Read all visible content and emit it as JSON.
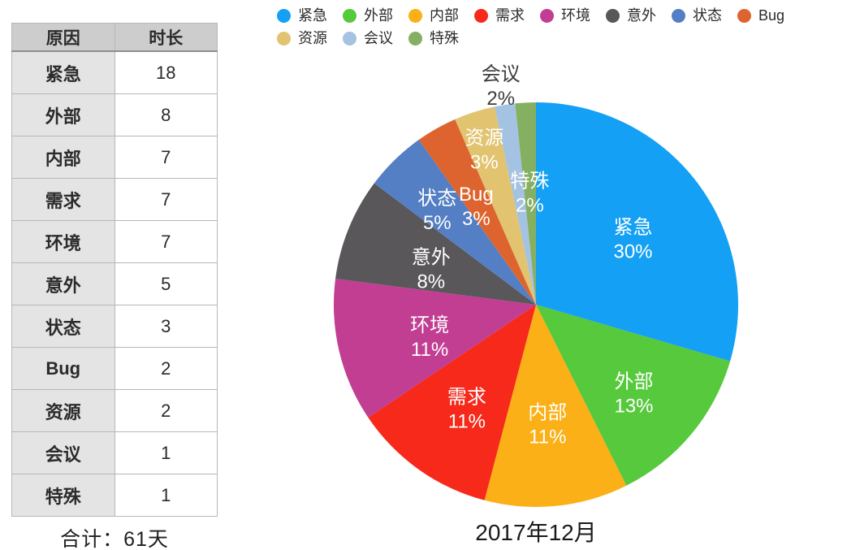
{
  "table": {
    "headers": [
      "原因",
      "时长"
    ],
    "rows": [
      [
        "紧急",
        "18"
      ],
      [
        "外部",
        "8"
      ],
      [
        "内部",
        "7"
      ],
      [
        "需求",
        "7"
      ],
      [
        "环境",
        "7"
      ],
      [
        "意外",
        "5"
      ],
      [
        "状态",
        "3"
      ],
      [
        "Bug",
        "2"
      ],
      [
        "资源",
        "2"
      ],
      [
        "会议",
        "1"
      ],
      [
        "特殊",
        "1"
      ]
    ],
    "total_label": "合计：61天"
  },
  "chart_data": {
    "type": "pie",
    "title": "2017年12月",
    "legend_position": "top",
    "start_angle_deg": 0,
    "clockwise": true,
    "total_days": 61,
    "categories": [
      "紧急",
      "外部",
      "内部",
      "需求",
      "环境",
      "意外",
      "状态",
      "Bug",
      "资源",
      "会议",
      "特殊"
    ],
    "values_days": [
      18,
      8,
      7,
      7,
      7,
      5,
      3,
      2,
      2,
      1,
      1
    ],
    "percent_labels": [
      "30%",
      "13%",
      "11%",
      "11%",
      "11%",
      "8%",
      "5%",
      "3%",
      "3%",
      "2%",
      "2%"
    ],
    "colors": [
      "#14a0f4",
      "#56c93c",
      "#fab016",
      "#f6291a",
      "#c13e92",
      "#59575a",
      "#547fc4",
      "#dd642e",
      "#e2c36f",
      "#a4c2e1",
      "#85af61"
    ],
    "label_radius_factors": [
      0.6,
      0.63,
      0.56,
      0.59,
      0.54,
      0.56,
      0.7,
      0.6,
      0.84,
      1.13,
      0.59
    ],
    "outside_label_index": 9,
    "inside_label_color": "#ffffff",
    "outside_label_color": "#3d3d3d"
  },
  "colors": {
    "background": "#ffffff",
    "table_header_bg": "#cdcdcd",
    "table_label_col_bg": "#e4e4e4",
    "table_border": "#b7b7b7",
    "text": "#2b2b2b"
  }
}
